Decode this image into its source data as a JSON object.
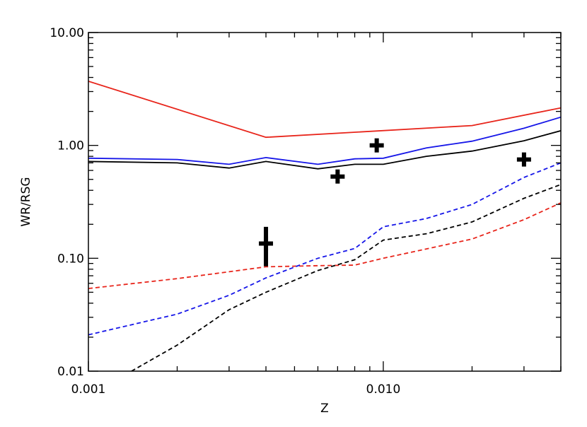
{
  "chart_data": {
    "type": "line",
    "title": "",
    "xlabel": "Z",
    "ylabel": "WR/RSG",
    "xscale": "log",
    "yscale": "log",
    "xlim": [
      0.001,
      0.04
    ],
    "ylim": [
      0.01,
      10
    ],
    "grid": false,
    "legend": "none",
    "x_tick_labels": [
      {
        "value": 0.001,
        "label": "0.001"
      },
      {
        "value": 0.01,
        "label": "0.010"
      }
    ],
    "y_tick_labels": [
      {
        "value": 0.01,
        "label": "0.01"
      },
      {
        "value": 0.1,
        "label": "0.10"
      },
      {
        "value": 1,
        "label": "1.00"
      },
      {
        "value": 10,
        "label": "10.00"
      }
    ],
    "series": [
      {
        "color": "#e8251b",
        "style": "solid",
        "x": [
          0.001,
          0.004,
          0.02,
          0.04
        ],
        "y": [
          3.7,
          1.18,
          1.5,
          2.15
        ]
      },
      {
        "color": "#1616e8",
        "style": "solid",
        "x": [
          0.001,
          0.002,
          0.003,
          0.004,
          0.006,
          0.008,
          0.01,
          0.014,
          0.02,
          0.03,
          0.04
        ],
        "y": [
          0.77,
          0.75,
          0.68,
          0.78,
          0.68,
          0.76,
          0.77,
          0.95,
          1.09,
          1.42,
          1.78
        ]
      },
      {
        "color": "#000000",
        "style": "solid",
        "x": [
          0.001,
          0.002,
          0.003,
          0.004,
          0.006,
          0.008,
          0.01,
          0.014,
          0.02,
          0.03,
          0.04
        ],
        "y": [
          0.72,
          0.7,
          0.63,
          0.72,
          0.62,
          0.68,
          0.68,
          0.8,
          0.89,
          1.1,
          1.35
        ]
      },
      {
        "color": "#e8251b",
        "style": "dashed",
        "x": [
          0.001,
          0.002,
          0.003,
          0.004,
          0.006,
          0.008,
          0.01,
          0.014,
          0.02,
          0.03,
          0.04
        ],
        "y": [
          0.054,
          0.066,
          0.076,
          0.084,
          0.086,
          0.087,
          0.1,
          0.121,
          0.148,
          0.22,
          0.31
        ]
      },
      {
        "color": "#1616e8",
        "style": "dashed",
        "x": [
          0.001,
          0.002,
          0.003,
          0.004,
          0.006,
          0.008,
          0.01,
          0.014,
          0.02,
          0.03,
          0.04
        ],
        "y": [
          0.021,
          0.032,
          0.047,
          0.067,
          0.1,
          0.122,
          0.19,
          0.225,
          0.3,
          0.52,
          0.7
        ]
      },
      {
        "color": "#000000",
        "style": "dashed",
        "x": [
          0.0014,
          0.002,
          0.003,
          0.004,
          0.006,
          0.008,
          0.01,
          0.014,
          0.02,
          0.03,
          0.04
        ],
        "y": [
          0.01,
          0.017,
          0.035,
          0.05,
          0.078,
          0.097,
          0.145,
          0.165,
          0.21,
          0.34,
          0.45
        ]
      }
    ],
    "points": [
      {
        "x": 0.004,
        "y": 0.135,
        "yerr_low": 0.085,
        "yerr_high": 0.19
      },
      {
        "x": 0.007,
        "y": 0.53
      },
      {
        "x": 0.0095,
        "y": 1.0
      },
      {
        "x": 0.03,
        "y": 0.75
      }
    ]
  }
}
